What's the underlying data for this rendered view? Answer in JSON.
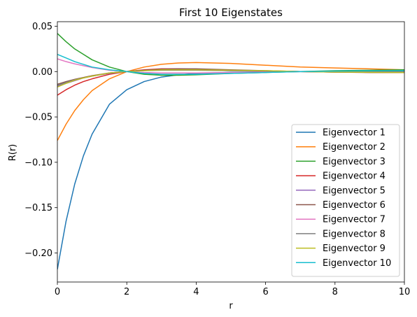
{
  "chart_data": {
    "type": "line",
    "title": "First 10 Eigenstates",
    "xlabel": "r",
    "ylabel": "R(r)",
    "xlim": [
      0,
      10
    ],
    "ylim": [
      -0.232,
      0.055
    ],
    "xticks": [
      0,
      2,
      4,
      6,
      8,
      10
    ],
    "xtick_labels": [
      "0",
      "2",
      "4",
      "6",
      "8",
      "10"
    ],
    "yticks": [
      -0.2,
      -0.15,
      -0.1,
      -0.05,
      0.0,
      0.05
    ],
    "ytick_labels": [
      "−0.20",
      "−0.15",
      "−0.10",
      "−0.05",
      "0.00",
      "0.05"
    ],
    "grid": false,
    "legend_position": "lower-right",
    "x": [
      0,
      0.25,
      0.5,
      0.75,
      1,
      1.5,
      2,
      2.5,
      3,
      3.5,
      4,
      5,
      6,
      7,
      8,
      9,
      10
    ],
    "series": [
      {
        "name": "Eigenvector 1",
        "color": "#1f77b4",
        "values": [
          -0.218,
          -0.165,
          -0.124,
          -0.093,
          -0.069,
          -0.036,
          -0.02,
          -0.011,
          -0.006,
          -0.0035,
          -0.002,
          -0.0008,
          -0.0003,
          -0.0001,
          0.0,
          0.0,
          0.0
        ]
      },
      {
        "name": "Eigenvector 2",
        "color": "#ff7f0e",
        "values": [
          -0.076,
          -0.058,
          -0.043,
          -0.031,
          -0.021,
          -0.008,
          0.0,
          0.005,
          0.008,
          0.0095,
          0.01,
          0.009,
          0.007,
          0.005,
          0.004,
          0.003,
          0.002
        ]
      },
      {
        "name": "Eigenvector 3",
        "color": "#2ca02c",
        "values": [
          0.042,
          0.033,
          0.025,
          0.019,
          0.013,
          0.005,
          0.0,
          -0.003,
          -0.004,
          -0.004,
          -0.0035,
          -0.002,
          -0.001,
          0.0,
          0.001,
          0.0015,
          0.002
        ]
      },
      {
        "name": "Eigenvector 4",
        "color": "#d62728",
        "values": [
          -0.026,
          -0.02,
          -0.015,
          -0.011,
          -0.008,
          -0.003,
          0.0,
          0.002,
          0.003,
          0.003,
          0.0025,
          0.0015,
          0.0005,
          0.0,
          -0.0005,
          -0.0008,
          -0.001
        ]
      },
      {
        "name": "Eigenvector 5",
        "color": "#9467bd",
        "values": [
          -0.016,
          -0.013,
          -0.01,
          -0.007,
          -0.005,
          -0.002,
          0.0,
          0.0015,
          0.002,
          0.002,
          0.002,
          0.001,
          0.0005,
          0.0,
          -0.0005,
          -0.0008,
          -0.001
        ]
      },
      {
        "name": "Eigenvector 6",
        "color": "#8c564b",
        "values": [
          -0.014,
          -0.011,
          -0.0085,
          -0.0065,
          -0.0045,
          -0.0015,
          0.0,
          0.0015,
          0.0025,
          0.003,
          0.003,
          0.002,
          0.001,
          0.0,
          -0.0005,
          -0.001,
          -0.001
        ]
      },
      {
        "name": "Eigenvector 7",
        "color": "#e377c2",
        "values": [
          0.014,
          0.011,
          0.0085,
          0.0065,
          0.0045,
          0.0015,
          0.0,
          -0.001,
          -0.0015,
          -0.0015,
          -0.0015,
          -0.001,
          -0.0005,
          0.0,
          0.0,
          0.0,
          0.0
        ]
      },
      {
        "name": "Eigenvector 8",
        "color": "#7f7f7f",
        "values": [
          -0.015,
          -0.012,
          -0.009,
          -0.007,
          -0.005,
          -0.0015,
          0.0,
          0.001,
          0.0015,
          0.0015,
          0.0015,
          0.001,
          0.0005,
          0.0,
          0.0,
          0.0,
          0.0
        ]
      },
      {
        "name": "Eigenvector 9",
        "color": "#bcbd22",
        "values": [
          -0.017,
          -0.013,
          -0.0095,
          -0.007,
          -0.005,
          -0.0015,
          0.0,
          0.001,
          0.002,
          0.002,
          0.002,
          0.0015,
          0.001,
          0.0,
          -0.0005,
          -0.0008,
          -0.001
        ]
      },
      {
        "name": "Eigenvector 10",
        "color": "#17becf",
        "values": [
          0.019,
          0.015,
          0.011,
          0.008,
          0.005,
          0.002,
          0.0,
          -0.002,
          -0.003,
          -0.003,
          -0.003,
          -0.002,
          -0.001,
          0.0,
          0.0005,
          0.0008,
          0.001
        ]
      }
    ]
  }
}
